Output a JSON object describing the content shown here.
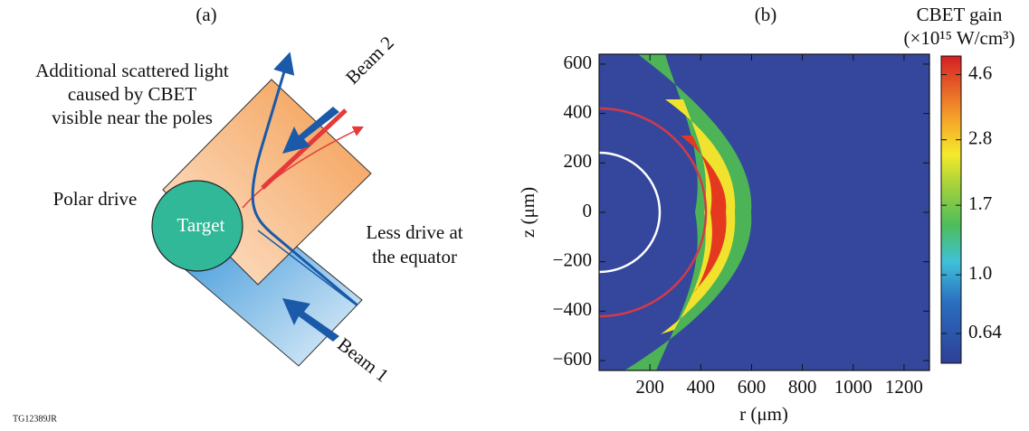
{
  "panel_a": {
    "label": "(a)",
    "scattered_note": [
      "Additional scattered light",
      "caused by CBET",
      "visible near the poles"
    ],
    "beam_2": "Beam 2",
    "beam_1": "Beam 1",
    "polar_drive": "Polar drive",
    "target": "Target",
    "equator_note": [
      "Less drive at",
      "the equator"
    ],
    "figure_id": "TG12389JR"
  },
  "chart_data": {
    "type": "heatmap",
    "title": "(b)",
    "xlabel": "r (μm)",
    "ylabel": "z (μm)",
    "xlim": [
      0,
      1300
    ],
    "xticks": [
      200,
      400,
      600,
      800,
      1000,
      1200
    ],
    "ylim": [
      -640,
      640
    ],
    "yticks": [
      {
        "value": -600,
        "label": "−600"
      },
      {
        "value": -400,
        "label": "−400"
      },
      {
        "value": -200,
        "label": "−200"
      },
      0,
      200,
      400,
      600
    ],
    "colorbar": {
      "label": "CBET gain",
      "unit": "(×10¹⁵ W/cm³)",
      "log": true,
      "clim": [
        0.51,
        5.3
      ],
      "ticks": [
        0.64,
        {
          "value": 1,
          "label": "1.0"
        },
        1.7,
        2.8,
        4.6
      ]
    }
  }
}
